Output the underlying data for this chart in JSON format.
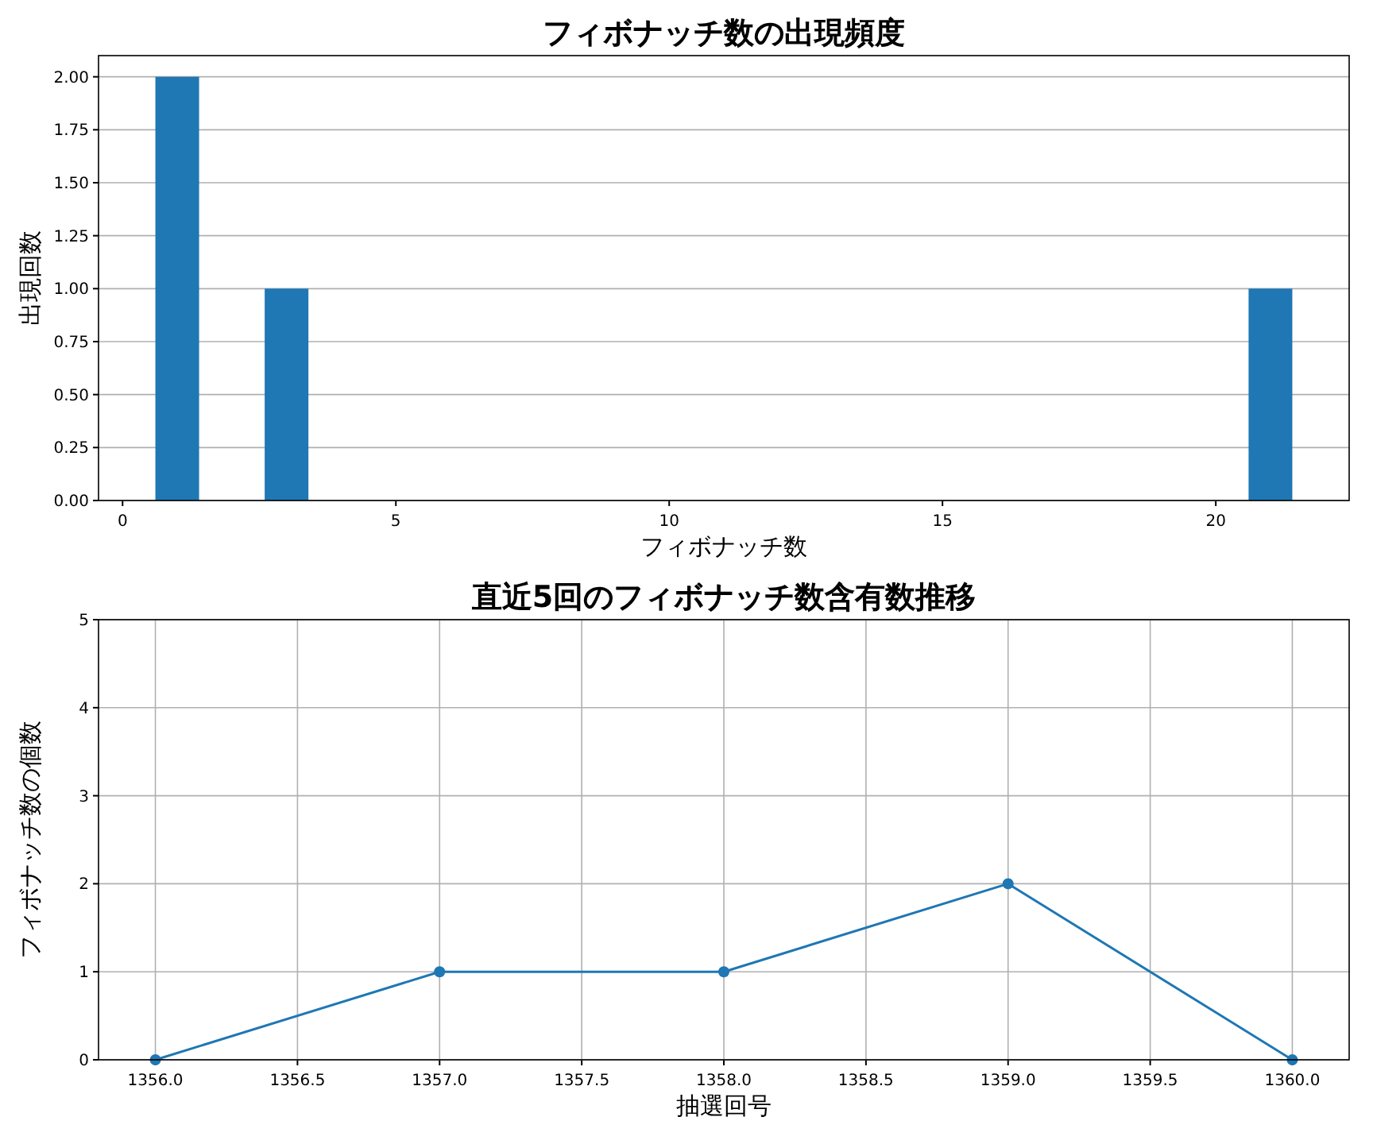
{
  "chart_data": [
    {
      "type": "bar",
      "title": "フィボナッチ数の出現頻度",
      "xlabel": "フィボナッチ数",
      "ylabel": "出現回数",
      "x": [
        1,
        3,
        21
      ],
      "values": [
        2,
        1,
        1
      ],
      "color": "#1f77b4",
      "xlim": [
        -0.44,
        22.44
      ],
      "ylim": [
        0,
        2.1
      ],
      "xticks": [
        0,
        5,
        10,
        15,
        20
      ],
      "yticks": [
        {
          "value": 0,
          "label": "0.00"
        },
        {
          "value": 0.25,
          "label": "0.25"
        },
        {
          "value": 0.5,
          "label": "0.50"
        },
        {
          "value": 0.75,
          "label": "0.75"
        },
        {
          "value": 1,
          "label": "1.00"
        },
        {
          "value": 1.25,
          "label": "1.25"
        },
        {
          "value": 1.5,
          "label": "1.50"
        },
        {
          "value": 1.75,
          "label": "1.75"
        },
        {
          "value": 2,
          "label": "2.00"
        }
      ],
      "grid": "y"
    },
    {
      "type": "line",
      "title": "直近5回のフィボナッチ数含有数推移",
      "xlabel": "抽選回号",
      "ylabel": "フィボナッチ数の個数",
      "x": [
        1356,
        1357,
        1358,
        1359,
        1360
      ],
      "values": [
        0,
        1,
        1,
        2,
        0
      ],
      "color": "#1f77b4",
      "marker": "circle",
      "line_style": "solid",
      "xlim": [
        1355.8,
        1360.2
      ],
      "ylim": [
        0,
        5
      ],
      "xticks": [
        {
          "value": 1356,
          "label": "1356.0"
        },
        {
          "value": 1356.5,
          "label": "1356.5"
        },
        {
          "value": 1357,
          "label": "1357.0"
        },
        {
          "value": 1357.5,
          "label": "1357.5"
        },
        {
          "value": 1358,
          "label": "1358.0"
        },
        {
          "value": 1358.5,
          "label": "1358.5"
        },
        {
          "value": 1359,
          "label": "1359.0"
        },
        {
          "value": 1359.5,
          "label": "1359.5"
        },
        {
          "value": 1360,
          "label": "1360.0"
        }
      ],
      "yticks": [
        0,
        1,
        2,
        3,
        4,
        5
      ],
      "grid": true
    }
  ]
}
